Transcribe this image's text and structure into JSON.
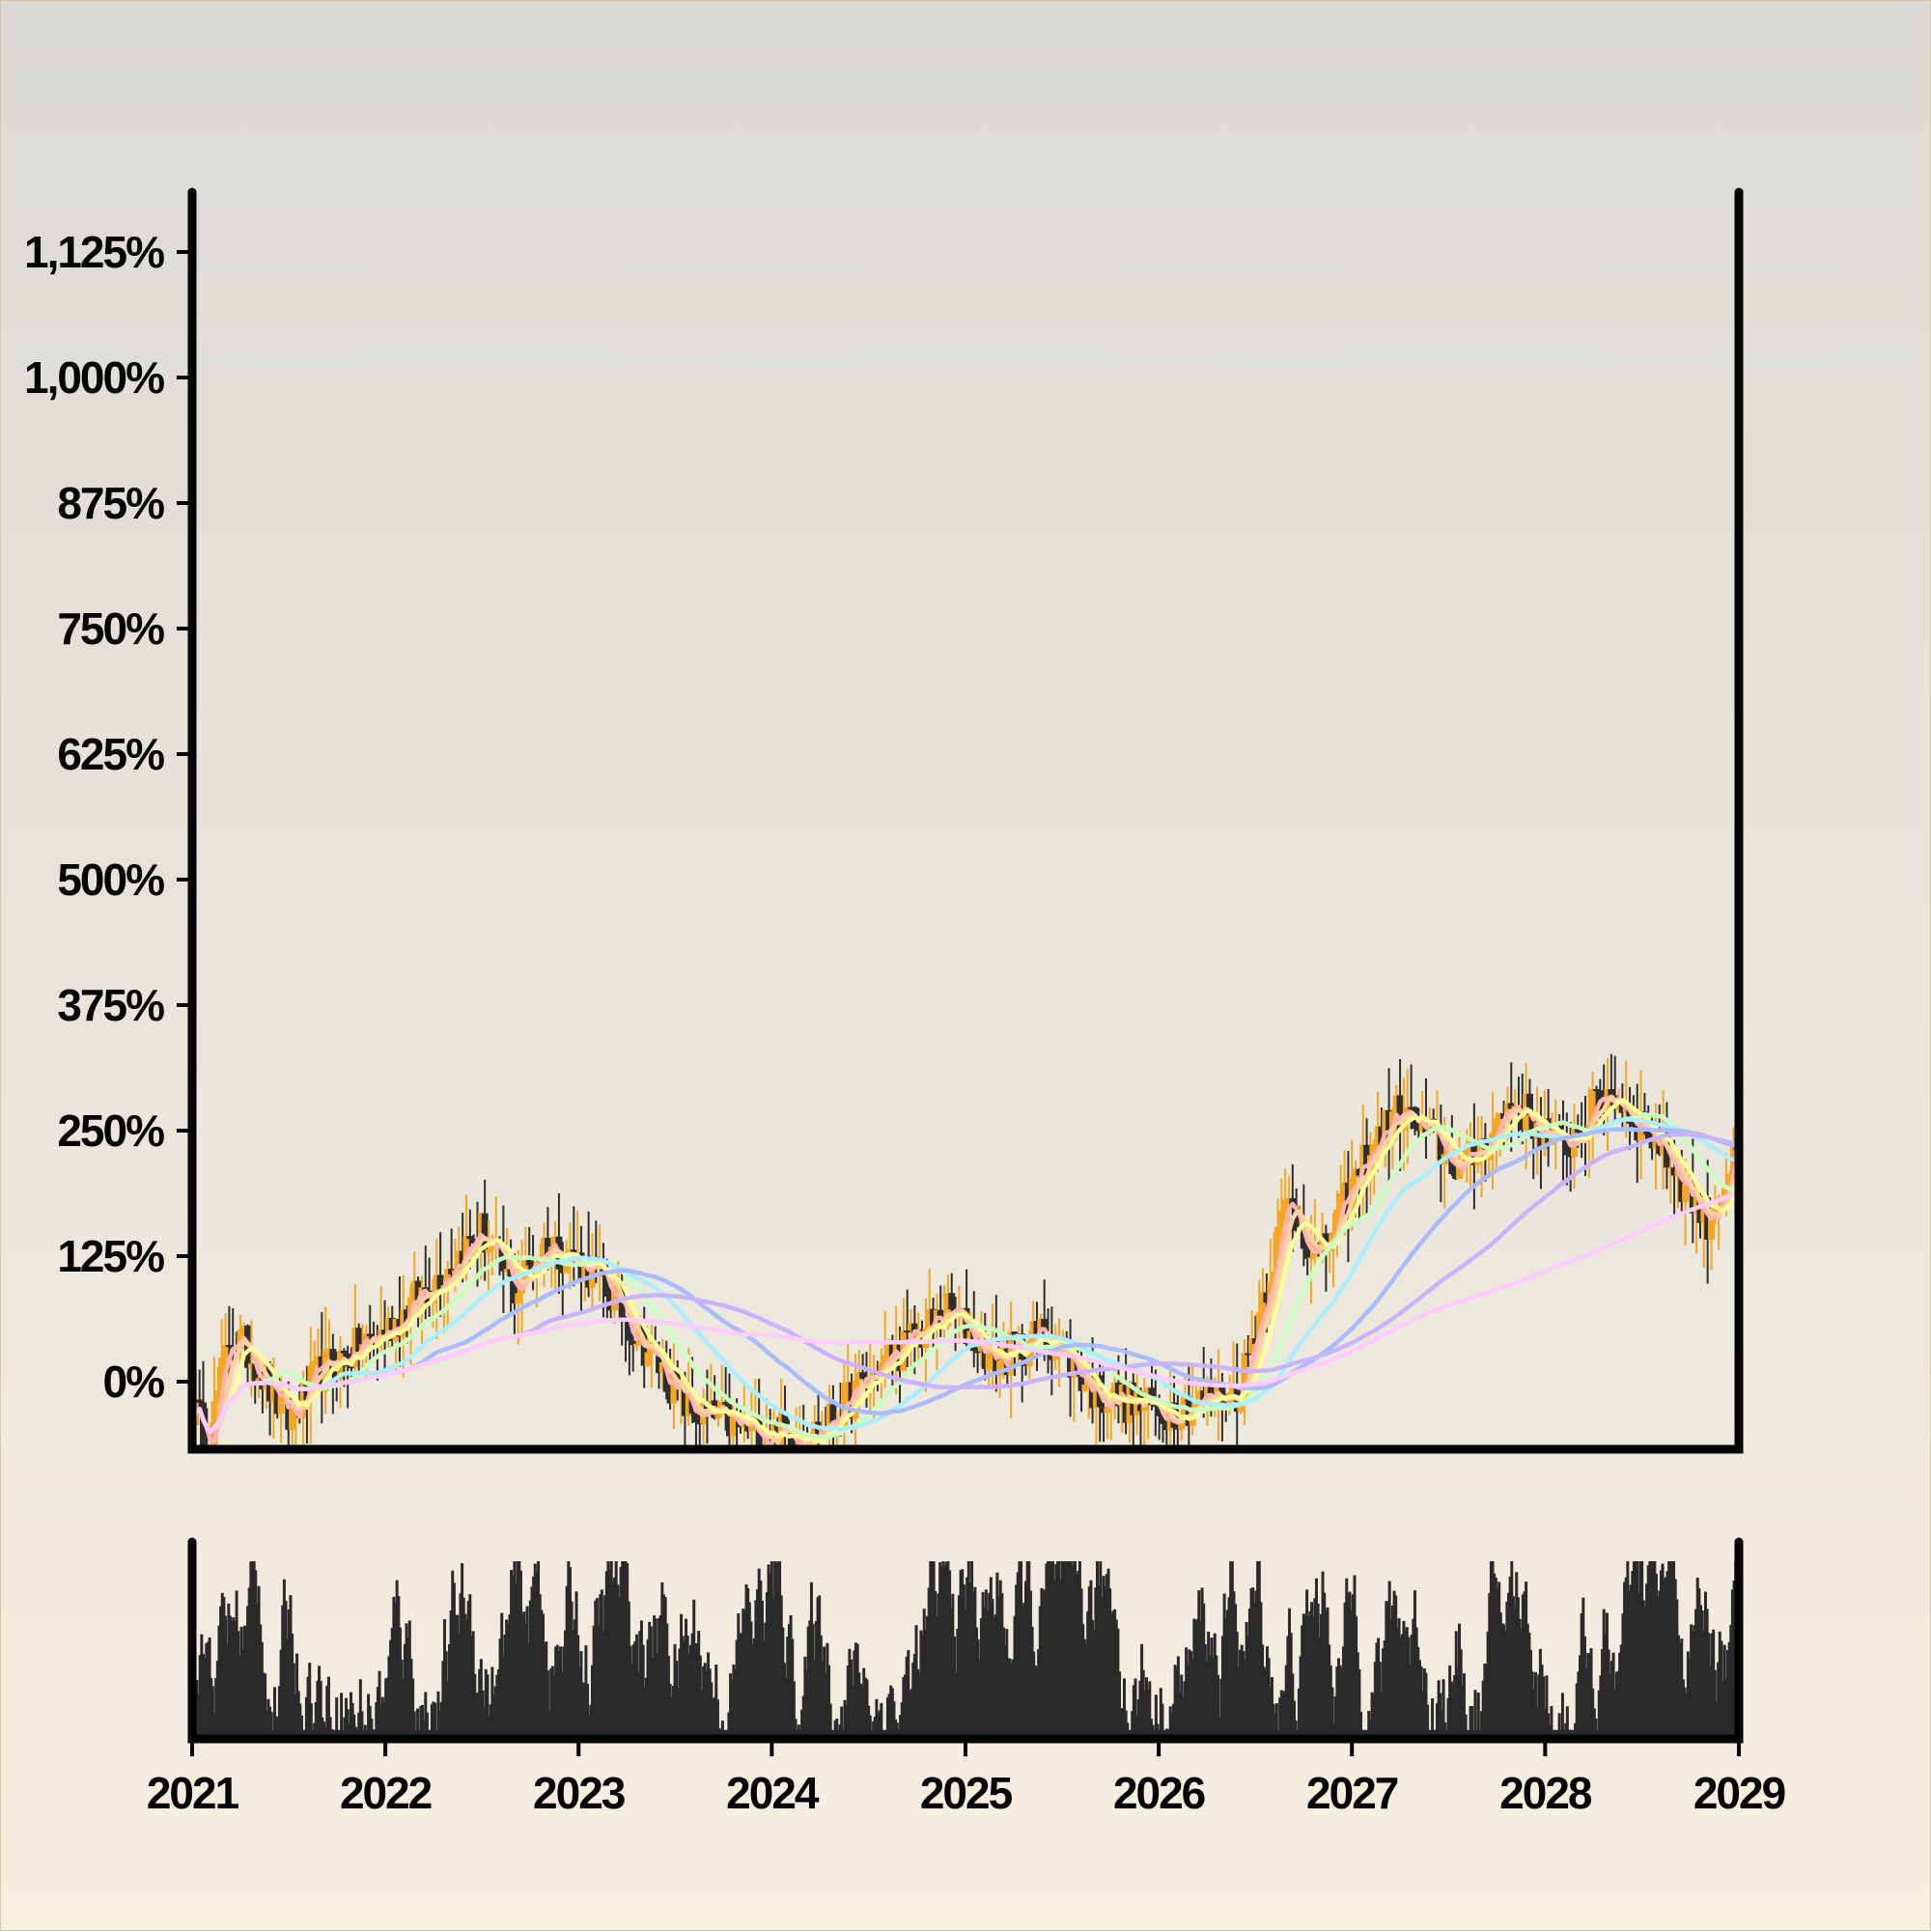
{
  "chart_data": {
    "type": "candlestick",
    "title": "",
    "xlabel": "",
    "ylabel": "",
    "y_scale": "linear",
    "y_unit": "percent",
    "ylim": [
      -62,
      1180
    ],
    "xlim": [
      "2021-01-01",
      "2029-01-01"
    ],
    "y_ticks": [
      0,
      125,
      250,
      375,
      500,
      625,
      750,
      875,
      1000,
      1125
    ],
    "y_tick_labels": [
      "0%",
      "125%",
      "250%",
      "375%",
      "500%",
      "625%",
      "750%",
      "875%",
      "1,000%",
      "1,125%"
    ],
    "x_ticks": [
      "2021",
      "2022",
      "2023",
      "2024",
      "2025",
      "2026",
      "2027",
      "2028",
      "2029"
    ],
    "grid": false,
    "legend": "none",
    "colors": {
      "up": "#f5a623",
      "down": "#2e2e2e",
      "volume": "#2a2a2a",
      "axes": "#000000",
      "ma_lines": [
        "#ffb3b3",
        "#ffd0a0",
        "#ffff99",
        "#c8ffc0",
        "#aaeeff",
        "#aabbff",
        "#c9b3ff",
        "#ffccff"
      ]
    },
    "price_path_keypoints": [
      {
        "date": "2021-01-01",
        "close": -25
      },
      {
        "date": "2021-02-01",
        "close": -60
      },
      {
        "date": "2021-03-15",
        "close": 50
      },
      {
        "date": "2021-05-01",
        "close": 20
      },
      {
        "date": "2021-07-01",
        "close": -40
      },
      {
        "date": "2021-09-01",
        "close": 10
      },
      {
        "date": "2022-01-01",
        "close": 50
      },
      {
        "date": "2022-04-01",
        "close": 100
      },
      {
        "date": "2022-07-01",
        "close": 150
      },
      {
        "date": "2022-09-01",
        "close": 90
      },
      {
        "date": "2022-11-01",
        "close": 140
      },
      {
        "date": "2023-02-01",
        "close": 110
      },
      {
        "date": "2023-05-01",
        "close": 40
      },
      {
        "date": "2023-08-01",
        "close": -30
      },
      {
        "date": "2023-12-01",
        "close": -50
      },
      {
        "date": "2024-04-01",
        "close": -50
      },
      {
        "date": "2024-08-01",
        "close": 20
      },
      {
        "date": "2024-12-01",
        "close": 70
      },
      {
        "date": "2025-03-01",
        "close": 20
      },
      {
        "date": "2025-06-01",
        "close": 50
      },
      {
        "date": "2025-09-01",
        "close": -10
      },
      {
        "date": "2026-01-01",
        "close": -30
      },
      {
        "date": "2026-06-01",
        "close": -10
      },
      {
        "date": "2026-09-01",
        "close": 180
      },
      {
        "date": "2026-11-01",
        "close": 120
      },
      {
        "date": "2027-02-01",
        "close": 230
      },
      {
        "date": "2027-04-01",
        "close": 270
      },
      {
        "date": "2027-08-01",
        "close": 210
      },
      {
        "date": "2027-11-01",
        "close": 280
      },
      {
        "date": "2028-02-01",
        "close": 230
      },
      {
        "date": "2028-05-01",
        "close": 290
      },
      {
        "date": "2028-08-01",
        "close": 240
      },
      {
        "date": "2028-11-01",
        "close": 160
      },
      {
        "date": "2029-01-01",
        "close": 230
      }
    ],
    "moving_average_endpoints": [
      {
        "name": "",
        "end_value": 215
      },
      {
        "name": "",
        "end_value": 225
      },
      {
        "name": "",
        "end_value": 240
      },
      {
        "name": "",
        "end_value": 235
      },
      {
        "name": "",
        "end_value": 225
      },
      {
        "name": "",
        "end_value": 180
      },
      {
        "name": "",
        "end_value": 125
      },
      {
        "name": "",
        "end_value": 95
      }
    ],
    "volume": "relative bar series (unlabeled)"
  }
}
